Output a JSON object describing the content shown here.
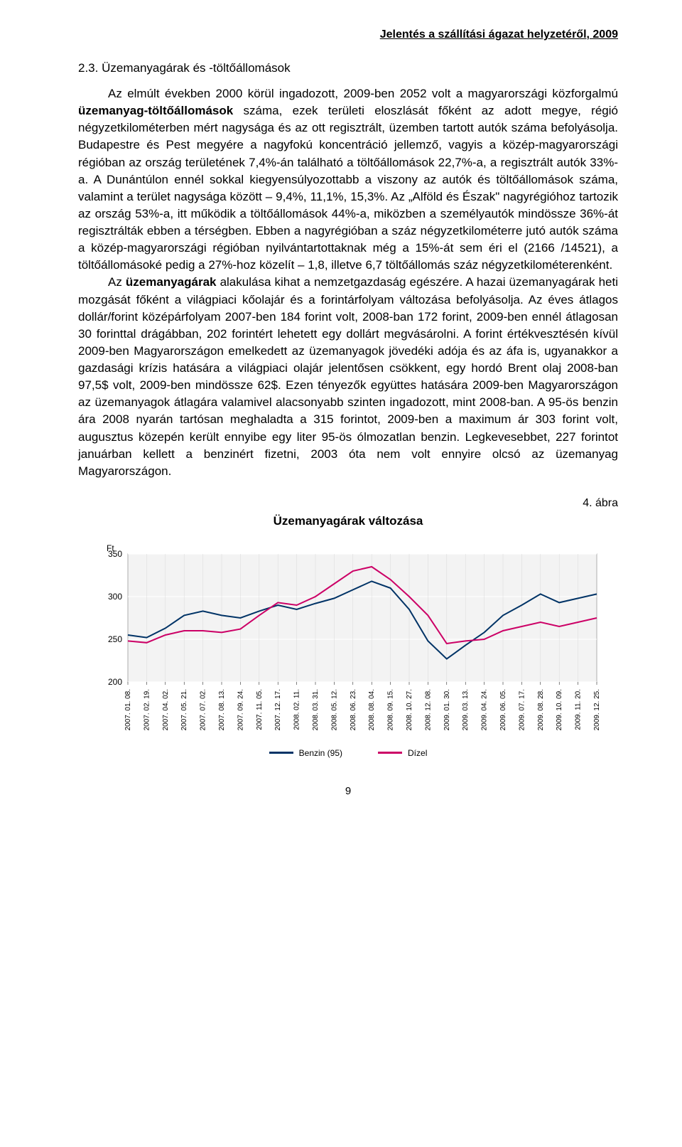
{
  "header": "Jelentés a szállítási ágazat helyzetéről, 2009",
  "section_number": "2.3.",
  "section_title": "Üzemanyagárak és -töltőállomások",
  "para1_lead": "Az elmúlt években 2000 körül ingadozott, 2009-ben 2052 volt a magyarországi közforgalmú ",
  "para1_bold": "üzemanyag-töltőállomások",
  "para1_rest": " száma, ezek területi eloszlását főként az adott megye, régió négyzetkilométerben mért nagysága és az ott regisztrált, üzemben tartott autók száma befolyásolja. Budapestre és Pest megyére a nagyfokú koncentráció jellemző, vagyis a közép-magyarországi régióban az ország területének 7,4%-án található a töltőállomások 22,7%-a, a regisztrált autók 33%-a. A Dunántúlon ennél sokkal kiegyensúlyozottabb a viszony az autók és töltőállomások száma, valamint a terület nagysága között – 9,4%, 11,1%, 15,3%. Az „Alföld és Észak\" nagyrégióhoz tartozik az ország 53%-a, itt működik a töltőállomások 44%-a, miközben a személyautók mindössze 36%-át regisztrálták ebben a térségben. Ebben a nagyrégióban a száz négyzetkilométerre jutó autók száma a közép-magyarországi régióban nyilvántartottaknak még a 15%-át sem éri el (2166 /14521), a töltőállomásoké pedig a 27%-hoz közelít – 1,8, illetve 6,7 töltőállomás száz négyzetkilométerenként.",
  "para2_lead": "Az ",
  "para2_bold": "üzemanyagárak",
  "para2_rest": " alakulása kihat a nemzetgazdaság egészére. A hazai üzemanyagárak heti mozgását főként a világpiaci kőolajár és a forintárfolyam változása befolyásolja. Az éves átlagos dollár/forint középárfolyam 2007-ben 184 forint volt, 2008-ban 172 forint, 2009-ben ennél átlagosan 30 forinttal drágábban, 202 forintért lehetett egy dollárt megvásárolni. A forint értékvesztésén kívül 2009-ben Magyarországon emelkedett az üzemanyagok jövedéki adója és az áfa is, ugyanakkor a gazdasági krízis hatására a világpiaci olajár jelentősen csökkent, egy hordó Brent olaj 2008-ban 97,5$ volt, 2009-ben mindössze 62$. Ezen tényezők együttes hatására 2009-ben Magyarországon az üzemanyagok átlagára valamivel alacsonyabb szinten ingadozott, mint 2008-ban. A 95-ös benzin ára 2008 nyarán tartósan meghaladta a 315 forintot, 2009-ben a maximum ár 303 forint volt, augusztus közepén került ennyibe egy liter 95-ös ólmozatlan benzin. Legkevesebbet, 227 forintot januárban kellett a benzinért fizetni, 2003 óta nem volt ennyire olcsó az üzemanyag Magyarországon.",
  "figure_label": "4. ábra",
  "chart": {
    "type": "line",
    "title": "Üzemanyagárak változása",
    "y_axis_label": "Ft",
    "ylim": [
      200,
      350
    ],
    "ytick_step": 50,
    "yticks": [
      200,
      250,
      300,
      350
    ],
    "background_color": "#ffffff",
    "grid_color": "#d9d9d9",
    "plot_bg": "#f3f3f3",
    "plot_border": "#808080",
    "line_width": 2,
    "x_labels": [
      "2007. 01. 08.",
      "2007. 02. 19.",
      "2007. 04. 02.",
      "2007. 05. 21.",
      "2007. 07. 02.",
      "2007. 08. 13.",
      "2007. 09. 24.",
      "2007. 11. 05.",
      "2007. 12. 17.",
      "2008. 02. 11.",
      "2008. 03. 31.",
      "2008. 05. 12.",
      "2008. 06. 23.",
      "2008. 08. 04.",
      "2008. 09. 15.",
      "2008. 10. 27.",
      "2008. 12. 08.",
      "2009. 01. 30.",
      "2009. 03. 13.",
      "2009. 04. 24.",
      "2009. 06. 05.",
      "2009. 07. 17.",
      "2009. 08. 28.",
      "2009. 10. 09.",
      "2009. 11. 20.",
      "2009. 12. 25."
    ],
    "series": [
      {
        "name": "Benzin (95)",
        "color": "#003366",
        "values": [
          255,
          252,
          263,
          278,
          283,
          278,
          275,
          283,
          290,
          285,
          292,
          298,
          308,
          318,
          310,
          285,
          248,
          227,
          243,
          258,
          278,
          290,
          303,
          293,
          298,
          303
        ]
      },
      {
        "name": "Dízel",
        "color": "#cc0066",
        "values": [
          248,
          246,
          255,
          260,
          260,
          258,
          262,
          278,
          293,
          290,
          300,
          315,
          330,
          335,
          320,
          300,
          278,
          245,
          248,
          250,
          260,
          265,
          270,
          265,
          270,
          275
        ]
      }
    ]
  },
  "page_number": "9"
}
